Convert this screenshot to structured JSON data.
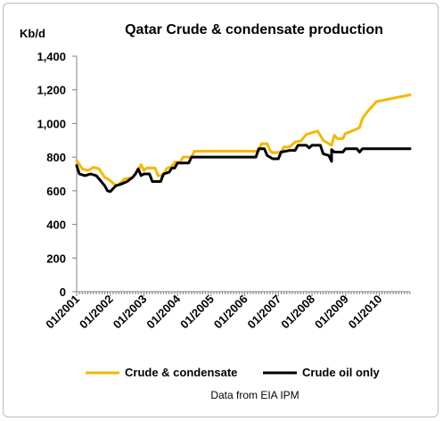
{
  "chart_data": {
    "type": "line",
    "title": "Qatar Crude & condensate production",
    "ylabel": "Kb/d",
    "note": "Data from EIA IPM",
    "ylim": [
      0,
      1400
    ],
    "yticks": [
      0,
      200,
      400,
      600,
      800,
      1000,
      1200,
      1400
    ],
    "ytick_labels": [
      "0",
      "200",
      "400",
      "600",
      "800",
      "1,000",
      "1,200",
      "1,400"
    ],
    "xlim": [
      "01/2001",
      "12/2010"
    ],
    "xtick_labels": [
      "01/2001",
      "01/2002",
      "01/2003",
      "01/2004",
      "01/2005",
      "01/2006",
      "01/2007",
      "01/2008",
      "01/2009",
      "01/2010"
    ],
    "grid": false,
    "legend": "bottom",
    "series": [
      {
        "name": "Crude & condensate",
        "color": "#f5b800",
        "points": [
          [
            "01/2001",
            780
          ],
          [
            "03/2001",
            730
          ],
          [
            "05/2001",
            720
          ],
          [
            "07/2001",
            740
          ],
          [
            "09/2001",
            730
          ],
          [
            "11/2001",
            680
          ],
          [
            "01/2002",
            660
          ],
          [
            "03/2002",
            630
          ],
          [
            "04/2002",
            635
          ],
          [
            "06/2002",
            670
          ],
          [
            "09/2002",
            680
          ],
          [
            "11/2002",
            725
          ],
          [
            "12/2002",
            755
          ],
          [
            "01/2003",
            720
          ],
          [
            "02/2003",
            735
          ],
          [
            "05/2003",
            735
          ],
          [
            "06/2003",
            690
          ],
          [
            "08/2003",
            690
          ],
          [
            "09/2003",
            730
          ],
          [
            "11/2003",
            745
          ],
          [
            "12/2003",
            770
          ],
          [
            "02/2004",
            770
          ],
          [
            "03/2004",
            800
          ],
          [
            "06/2004",
            800
          ],
          [
            "07/2004",
            835
          ],
          [
            "06/2006",
            835
          ],
          [
            "07/2006",
            880
          ],
          [
            "09/2006",
            880
          ],
          [
            "10/2006",
            840
          ],
          [
            "11/2006",
            825
          ],
          [
            "02/2007",
            830
          ],
          [
            "03/2007",
            860
          ],
          [
            "05/2007",
            860
          ],
          [
            "07/2007",
            890
          ],
          [
            "09/2007",
            895
          ],
          [
            "11/2007",
            935
          ],
          [
            "03/2008",
            955
          ],
          [
            "05/2008",
            900
          ],
          [
            "08/2008",
            870
          ],
          [
            "09/2008",
            930
          ],
          [
            "10/2008",
            910
          ],
          [
            "12/2008",
            910
          ],
          [
            "01/2009",
            940
          ],
          [
            "04/2009",
            960
          ],
          [
            "06/2009",
            975
          ],
          [
            "07/2009",
            1030
          ],
          [
            "09/2009",
            1075
          ],
          [
            "11/2009",
            1110
          ],
          [
            "12/2009",
            1130
          ],
          [
            "12/2010",
            1170
          ]
        ]
      },
      {
        "name": "Crude oil only",
        "color": "#000000",
        "points": [
          [
            "01/2001",
            750
          ],
          [
            "02/2001",
            700
          ],
          [
            "04/2001",
            690
          ],
          [
            "06/2001",
            700
          ],
          [
            "08/2001",
            690
          ],
          [
            "10/2001",
            650
          ],
          [
            "11/2001",
            630
          ],
          [
            "12/2001",
            600
          ],
          [
            "01/2002",
            595
          ],
          [
            "03/2002",
            630
          ],
          [
            "05/2002",
            640
          ],
          [
            "07/2002",
            655
          ],
          [
            "09/2002",
            680
          ],
          [
            "10/2002",
            700
          ],
          [
            "11/2002",
            730
          ],
          [
            "12/2002",
            690
          ],
          [
            "01/2003",
            700
          ],
          [
            "03/2003",
            700
          ],
          [
            "04/2003",
            655
          ],
          [
            "07/2003",
            655
          ],
          [
            "08/2003",
            700
          ],
          [
            "10/2003",
            710
          ],
          [
            "11/2003",
            735
          ],
          [
            "12/2003",
            735
          ],
          [
            "01/2004",
            765
          ],
          [
            "05/2004",
            765
          ],
          [
            "06/2004",
            800
          ],
          [
            "05/2006",
            800
          ],
          [
            "06/2006",
            850
          ],
          [
            "08/2006",
            850
          ],
          [
            "09/2006",
            810
          ],
          [
            "11/2006",
            790
          ],
          [
            "01/2007",
            790
          ],
          [
            "02/2007",
            830
          ],
          [
            "05/2007",
            840
          ],
          [
            "07/2007",
            840
          ],
          [
            "08/2007",
            870
          ],
          [
            "11/2007",
            870
          ],
          [
            "12/2007",
            855
          ],
          [
            "01/2008",
            870
          ],
          [
            "04/2008",
            870
          ],
          [
            "05/2008",
            820
          ],
          [
            "07/2008",
            810
          ],
          [
            "08/2008",
            775
          ],
          [
            "08/2008",
            845
          ],
          [
            "09/2008",
            830
          ],
          [
            "12/2008",
            830
          ],
          [
            "01/2009",
            850
          ],
          [
            "05/2009",
            850
          ],
          [
            "06/2009",
            830
          ],
          [
            "07/2009",
            850
          ],
          [
            "12/2010",
            850
          ]
        ]
      }
    ]
  }
}
